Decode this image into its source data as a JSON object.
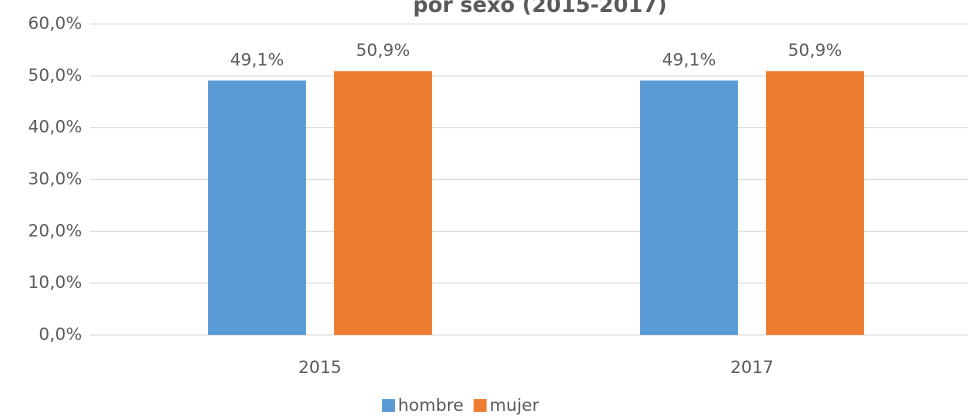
{
  "chart_data": {
    "type": "bar",
    "title": "por sexo (2015-2017)",
    "categories": [
      "2015",
      "2017"
    ],
    "series": [
      {
        "name": "hombre",
        "color": "#5b9bd5",
        "values": [
          49.1,
          49.1
        ],
        "value_labels": [
          "49,1%",
          "49,1%"
        ]
      },
      {
        "name": "mujer",
        "color": "#ed7d31",
        "values": [
          50.9,
          50.9
        ],
        "value_labels": [
          "50,9%",
          "50,9%"
        ]
      }
    ],
    "ylim": [
      0,
      60
    ],
    "yticks": [
      {
        "value": 0,
        "label": "0,0%"
      },
      {
        "value": 10,
        "label": "10,0%"
      },
      {
        "value": 20,
        "label": "20,0%"
      },
      {
        "value": 30,
        "label": "30,0%"
      },
      {
        "value": 40,
        "label": "40,0%"
      },
      {
        "value": 50,
        "label": "50,0%"
      },
      {
        "value": 60,
        "label": "60,0%"
      }
    ],
    "grid": true,
    "legend": "bottom"
  }
}
